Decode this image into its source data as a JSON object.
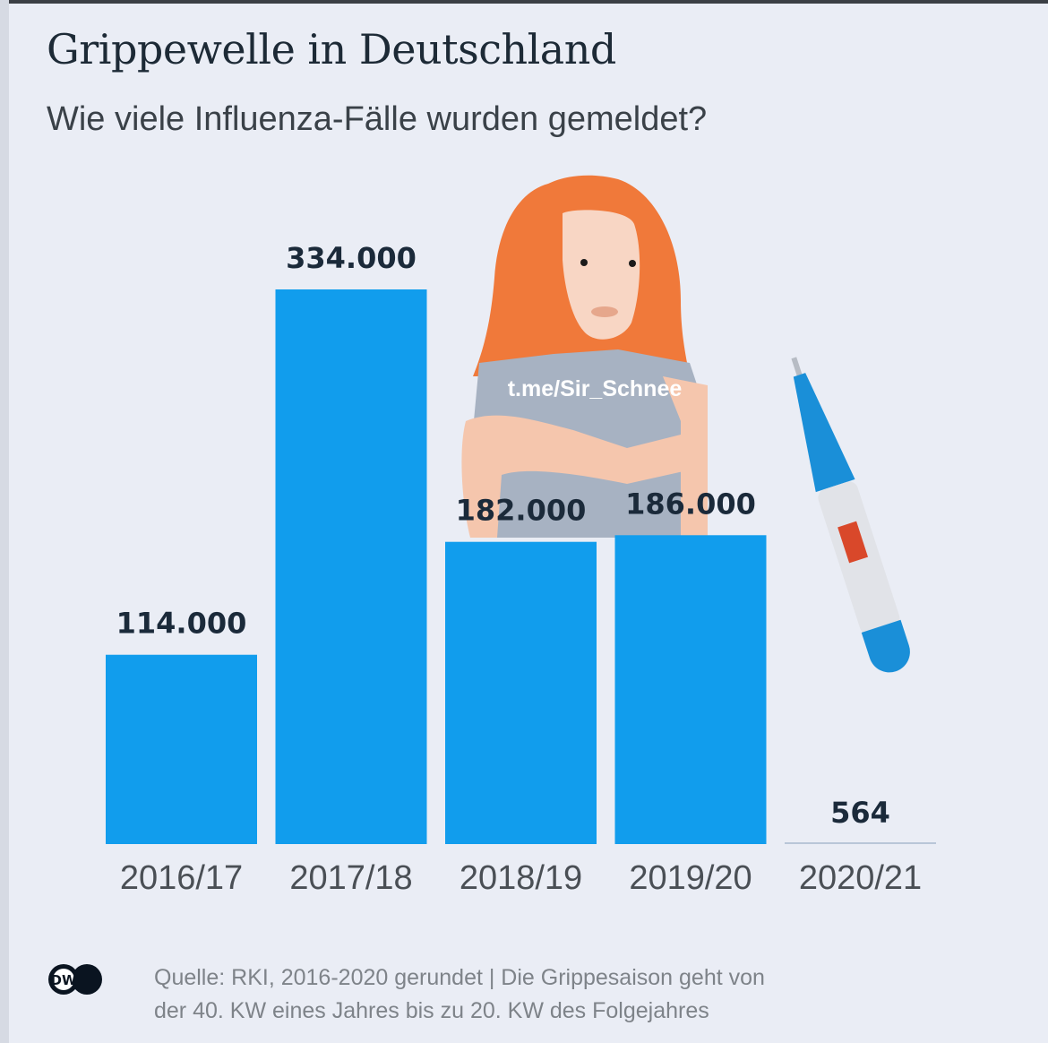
{
  "header": {
    "title": "Grippewelle in Deutschland",
    "subtitle": "Wie viele Influenza-Fälle wurden gemeldet?"
  },
  "watermark": "t.me/Sir_Schnee",
  "footer": {
    "logo": "DW",
    "source_line1": "Quelle: RKI, 2016-2020 gerundet | Die Grippesaison geht von",
    "source_line2": "der 40. KW eines Jahres bis zu 20. KW des Folgejahres"
  },
  "colors": {
    "bar": "#119ded",
    "label": "#1b2a3a",
    "axis_label": "#4a4f55",
    "hair": "#f0793a",
    "thermometer_blue": "#1a8fd8",
    "thermometer_display": "#d9482a"
  },
  "chart_data": {
    "type": "bar",
    "title": "Grippewelle in Deutschland",
    "subtitle": "Wie viele Influenza-Fälle wurden gemeldet?",
    "xlabel": "",
    "ylabel": "",
    "categories": [
      "2016/17",
      "2017/18",
      "2018/19",
      "2019/20",
      "2020/21"
    ],
    "values": [
      114000,
      334000,
      182000,
      186000,
      564
    ],
    "value_labels": [
      "114.000",
      "334.000",
      "182.000",
      "186.000",
      "564"
    ],
    "ylim": [
      0,
      334000
    ],
    "grid": false,
    "legend": "none"
  }
}
